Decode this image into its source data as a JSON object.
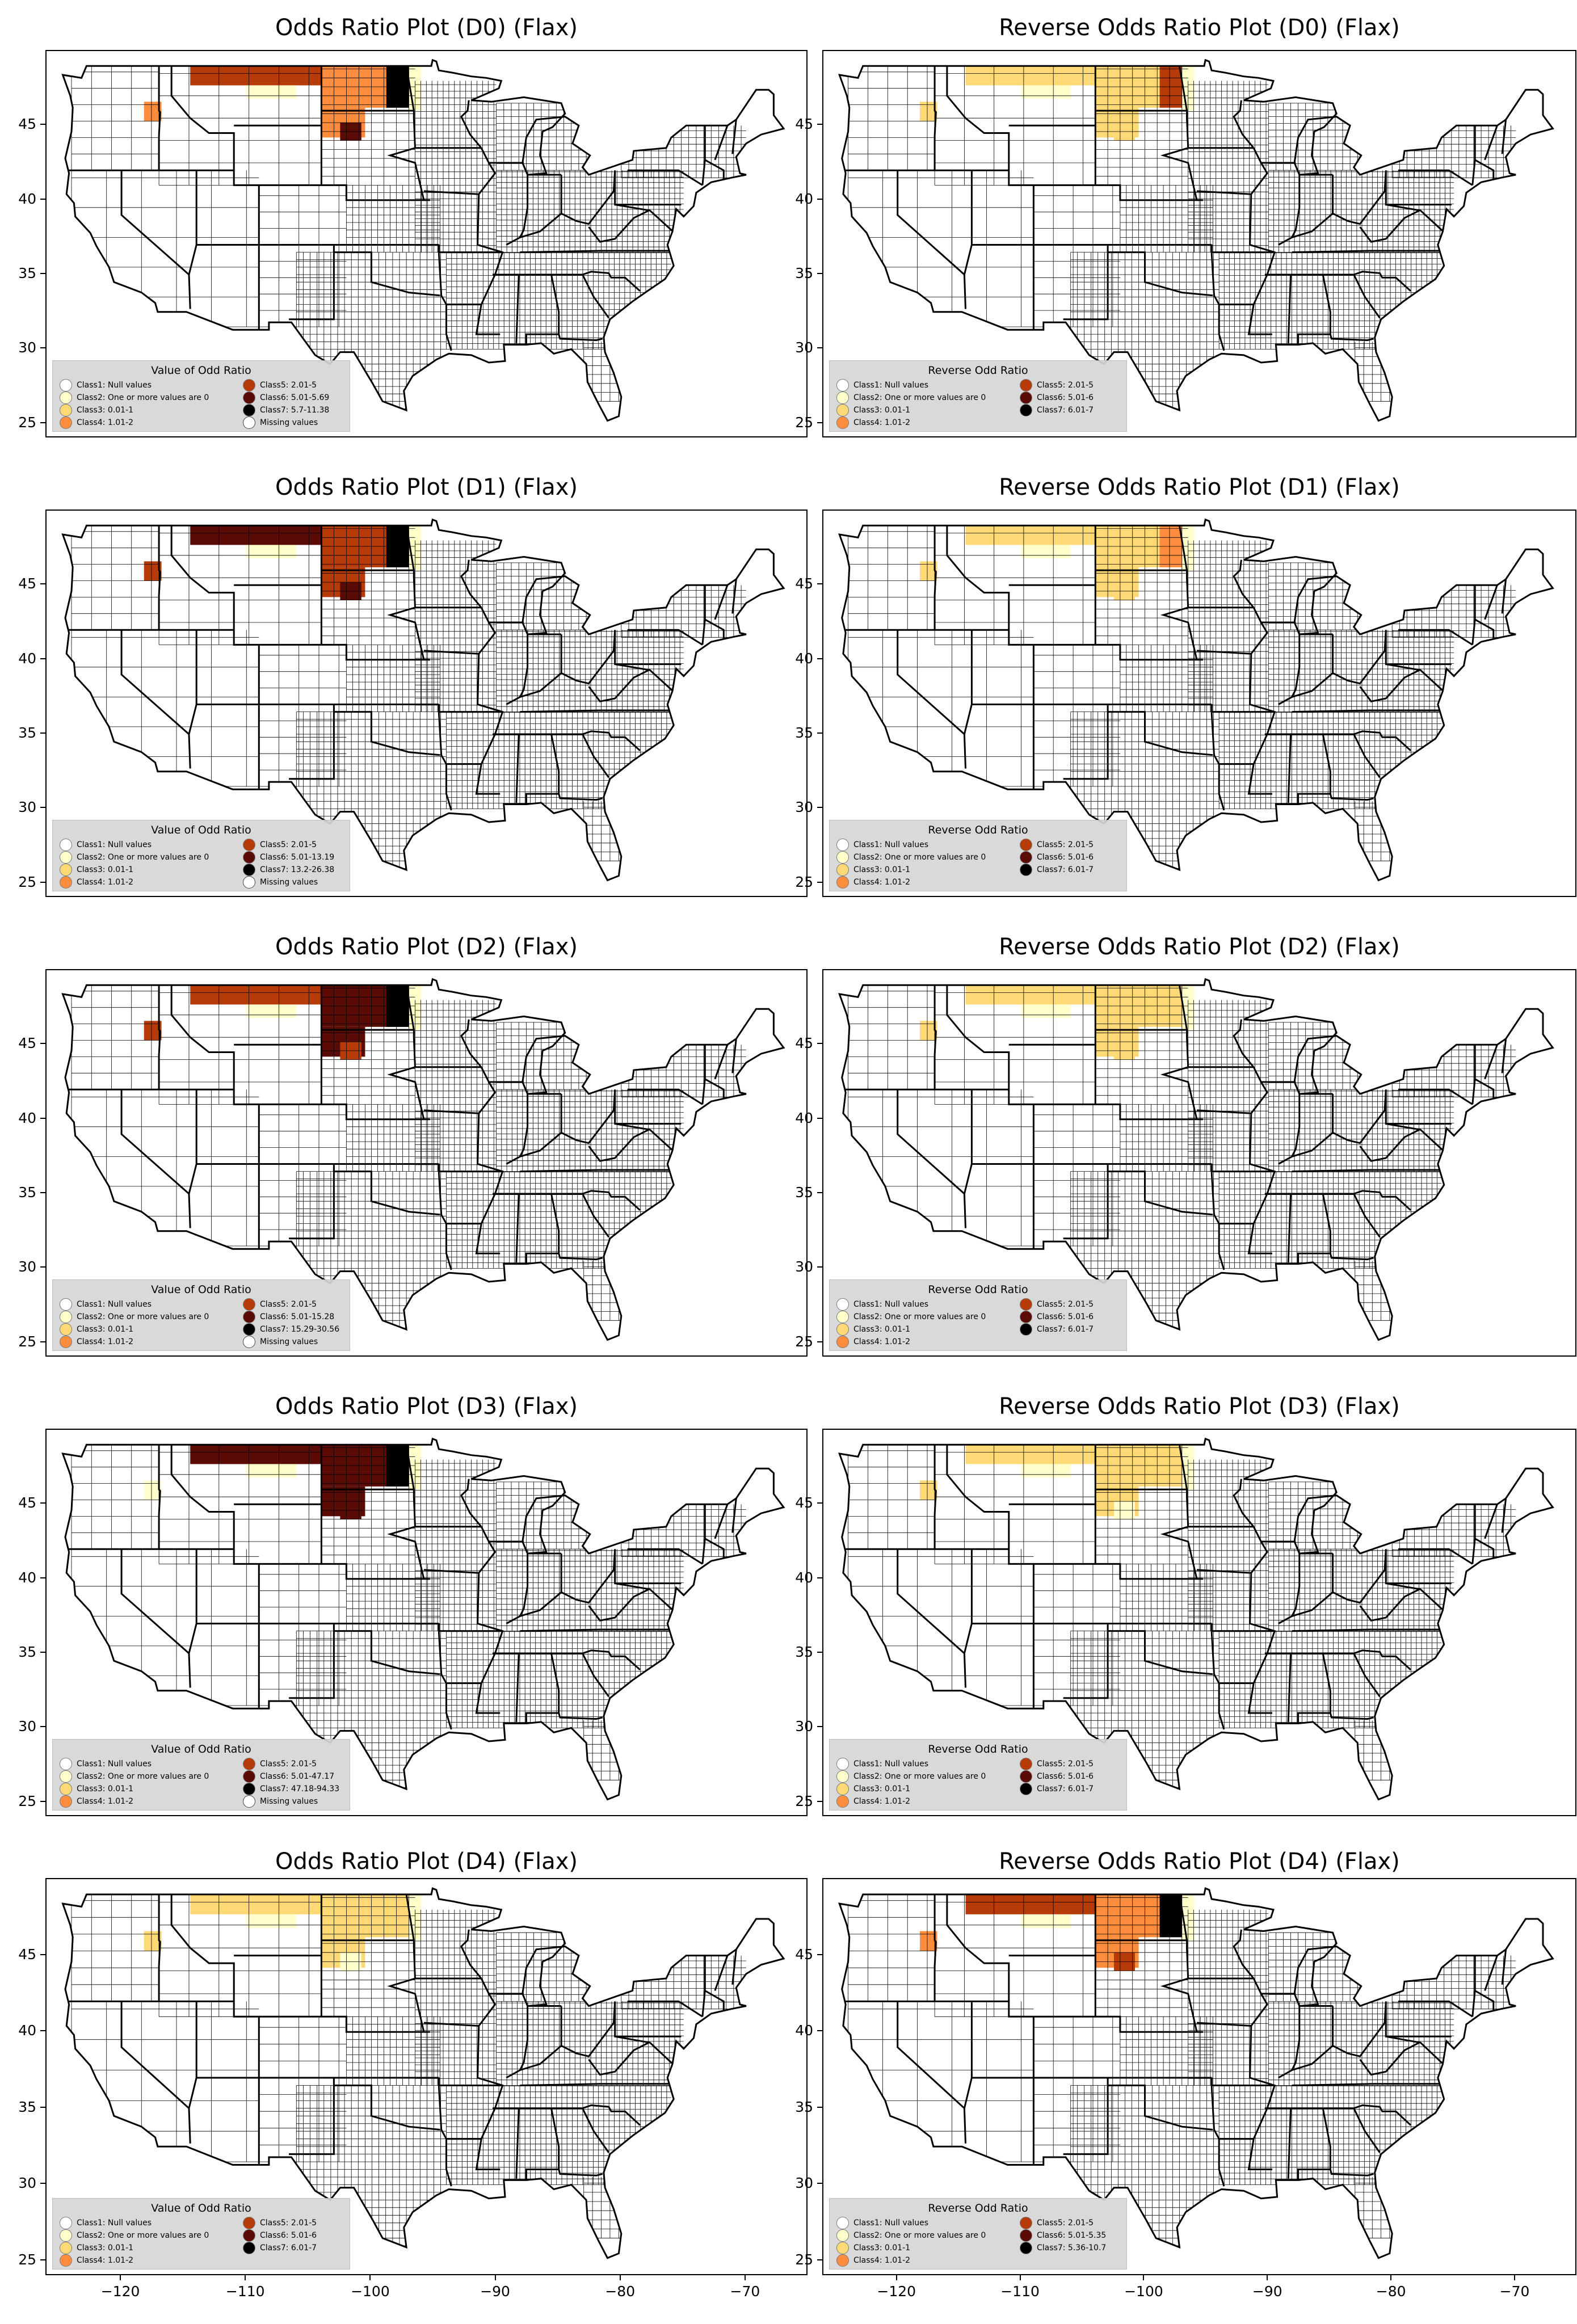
{
  "axes": {
    "y_ticks": [
      "45",
      "40",
      "35",
      "30",
      "25"
    ],
    "x_ticks": [
      "−120",
      "−110",
      "−100",
      "−90",
      "−80",
      "−70"
    ],
    "y_values": [
      45,
      40,
      35,
      30,
      25
    ],
    "x_values": [
      -120,
      -110,
      -100,
      -90,
      -80,
      -70
    ],
    "lon_range": [
      -126,
      -65
    ],
    "lat_range": [
      24,
      50
    ]
  },
  "colors": {
    "class1": "#ffffff",
    "class2": "#ffffcc",
    "class3": "#fed976",
    "class4": "#fd8d3c",
    "class5": "#b63b08",
    "class6": "#5a0b05",
    "class7": "#000000",
    "missing": "#ffffff"
  },
  "legend_labels": {
    "odds_title": "Value of Odd Ratio",
    "reverse_title": "Reverse Odd Ratio",
    "class1": "Class1: Null values",
    "class2": "Class2: One or more values are 0",
    "class3": "Class3: 0.01-1",
    "class4": "Class4: 1.01-2",
    "class5": "Class5: 2.01-5",
    "missing": "Missing values"
  },
  "panels": [
    {
      "title": "Odds Ratio Plot (D0) (Flax)",
      "legend": {
        "class6": "Class6: 5.01-5.69",
        "class7": "Class7: 5.7-11.38",
        "has_missing": true
      },
      "shading": {
        "west_band": "class5",
        "west_patch": "class4",
        "east_block": "class4",
        "east_dark": "class7",
        "east_dark2": "class6",
        "fringe": "class2"
      }
    },
    {
      "title": "Reverse Odds Ratio Plot (D0) (Flax)",
      "legend": {
        "class6": "Class6: 5.01-6",
        "class7": "Class7: 6.01-7",
        "has_missing": false
      },
      "shading": {
        "west_band": "class3",
        "west_patch": "class3",
        "east_block": "class3",
        "east_dark": "class5",
        "east_dark2": "class3",
        "fringe": "class2"
      }
    },
    {
      "title": "Odds Ratio Plot (D1) (Flax)",
      "legend": {
        "class6": "Class6: 5.01-13.19",
        "class7": "Class7: 13.2-26.38",
        "has_missing": true
      },
      "shading": {
        "west_band": "class6",
        "west_patch": "class5",
        "east_block": "class5",
        "east_dark": "class7",
        "east_dark2": "class6",
        "fringe": "class2"
      }
    },
    {
      "title": "Reverse Odds Ratio Plot (D1) (Flax)",
      "legend": {
        "class6": "Class6: 5.01-6",
        "class7": "Class7: 6.01-7",
        "has_missing": false
      },
      "shading": {
        "west_band": "class3",
        "west_patch": "class3",
        "east_block": "class3",
        "east_dark": "class4",
        "east_dark2": "class3",
        "fringe": "class2"
      }
    },
    {
      "title": "Odds Ratio Plot (D2) (Flax)",
      "legend": {
        "class6": "Class6: 5.01-15.28",
        "class7": "Class7: 15.29-30.56",
        "has_missing": true
      },
      "shading": {
        "west_band": "class5",
        "west_patch": "class5",
        "east_block": "class6",
        "east_dark": "class7",
        "east_dark2": "class5",
        "fringe": "class2"
      }
    },
    {
      "title": "Reverse Odds Ratio Plot (D2) (Flax)",
      "legend": {
        "class6": "Class6: 5.01-6",
        "class7": "Class7: 6.01-7",
        "has_missing": false
      },
      "shading": {
        "west_band": "class3",
        "west_patch": "class3",
        "east_block": "class3",
        "east_dark": "class3",
        "east_dark2": "class3",
        "fringe": "class2"
      }
    },
    {
      "title": "Odds Ratio Plot (D3) (Flax)",
      "legend": {
        "class6": "Class6: 5.01-47.17",
        "class7": "Class7: 47.18-94.33",
        "has_missing": true
      },
      "shading": {
        "west_band": "class6",
        "west_patch": "class2",
        "east_block": "class6",
        "east_dark": "class7",
        "east_dark2": "class6",
        "fringe": "class2"
      }
    },
    {
      "title": "Reverse Odds Ratio Plot (D3) (Flax)",
      "legend": {
        "class6": "Class6: 5.01-6",
        "class7": "Class7: 6.01-7",
        "has_missing": false
      },
      "shading": {
        "west_band": "class3",
        "west_patch": "class3",
        "east_block": "class3",
        "east_dark": "class3",
        "east_dark2": "class2",
        "fringe": "class2"
      }
    },
    {
      "title": "Odds Ratio Plot (D4) (Flax)",
      "legend": {
        "class6": "Class6: 5.01-6",
        "class7": "Class7: 6.01-7",
        "has_missing": false
      },
      "shading": {
        "west_band": "class3",
        "west_patch": "class3",
        "east_block": "class3",
        "east_dark": "class3",
        "east_dark2": "class2",
        "fringe": "class2"
      }
    },
    {
      "title": "Reverse Odds Ratio Plot (D4) (Flax)",
      "legend": {
        "class6": "Class6: 5.01-5.35",
        "class7": "Class7: 5.36-10.7",
        "has_missing": false
      },
      "shading": {
        "west_band": "class5",
        "west_patch": "class4",
        "east_block": "class4",
        "east_dark": "class7",
        "east_dark2": "class5",
        "fringe": "class2"
      }
    }
  ]
}
